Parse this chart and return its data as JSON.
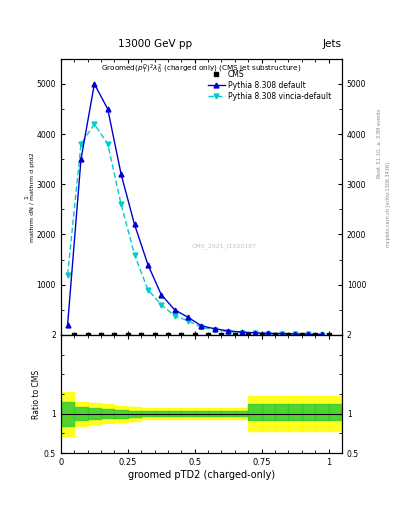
{
  "title_top": "13000 GeV pp",
  "title_right": "Jets",
  "plot_title": "Groomed$(p_T^D)^2\\lambda_0^2$  (charged only)  (CMS jet substructure)",
  "xlabel": "groomed pTD2 (charged-only)",
  "ylabel_ratio": "Ratio to CMS",
  "watermark": "CMS_2021_I1920187",
  "right_label": "mcplots.cern.ch [arXiv:1306.3436]",
  "right_label2": "Rivet 3.1.10, ≥ 3.3M events",
  "pythia_x": [
    0.025,
    0.075,
    0.125,
    0.175,
    0.225,
    0.275,
    0.325,
    0.375,
    0.425,
    0.475,
    0.525,
    0.575,
    0.625,
    0.675,
    0.725,
    0.775,
    0.825,
    0.875,
    0.925,
    0.975
  ],
  "pythia_default_y": [
    200,
    3500,
    5000,
    4500,
    3200,
    2200,
    1400,
    800,
    500,
    350,
    180,
    120,
    80,
    55,
    40,
    30,
    25,
    18,
    12,
    8
  ],
  "pythia_vincia_y": [
    1200,
    3800,
    4200,
    3800,
    2600,
    1600,
    900,
    600,
    380,
    280,
    150,
    95,
    65,
    45,
    32,
    24,
    18,
    14,
    10,
    6
  ],
  "pythia_default_color": "#0000cc",
  "pythia_vincia_color": "#00cccc",
  "cms_color": "#000000",
  "cms_x": [
    0.05,
    0.1,
    0.15,
    0.2,
    0.25,
    0.3,
    0.35,
    0.4,
    0.45,
    0.5,
    0.55,
    0.6,
    0.65,
    0.7,
    0.75,
    0.8,
    0.85,
    0.9,
    0.95,
    1.0
  ],
  "ylim_main": [
    0,
    5500
  ],
  "ylim_ratio": [
    0.5,
    2.0
  ],
  "xlim": [
    0.0,
    1.05
  ],
  "ratio_bins_x": [
    0.0,
    0.05,
    0.1,
    0.15,
    0.2,
    0.25,
    0.3,
    0.35,
    0.4,
    0.45,
    0.5,
    0.55,
    0.6,
    0.65,
    0.7,
    0.75,
    0.8,
    0.85,
    0.9,
    0.95,
    1.0,
    1.05
  ],
  "ratio_green_lo": [
    0.85,
    0.92,
    0.93,
    0.94,
    0.95,
    0.96,
    0.97,
    0.97,
    0.97,
    0.97,
    0.97,
    0.97,
    0.97,
    0.97,
    0.92,
    0.92,
    0.92,
    0.92,
    0.92,
    0.92,
    0.92
  ],
  "ratio_green_hi": [
    1.15,
    1.08,
    1.07,
    1.06,
    1.05,
    1.04,
    1.03,
    1.03,
    1.03,
    1.03,
    1.03,
    1.03,
    1.03,
    1.03,
    1.12,
    1.12,
    1.12,
    1.12,
    1.12,
    1.12,
    1.12
  ],
  "ratio_yellow_lo": [
    0.72,
    0.85,
    0.87,
    0.88,
    0.9,
    0.91,
    0.93,
    0.93,
    0.93,
    0.93,
    0.93,
    0.93,
    0.93,
    0.93,
    0.78,
    0.78,
    0.78,
    0.78,
    0.78,
    0.78,
    0.78
  ],
  "ratio_yellow_hi": [
    1.28,
    1.15,
    1.13,
    1.12,
    1.1,
    1.09,
    1.07,
    1.07,
    1.07,
    1.07,
    1.07,
    1.07,
    1.07,
    1.07,
    1.22,
    1.22,
    1.22,
    1.22,
    1.22,
    1.22,
    1.22
  ]
}
